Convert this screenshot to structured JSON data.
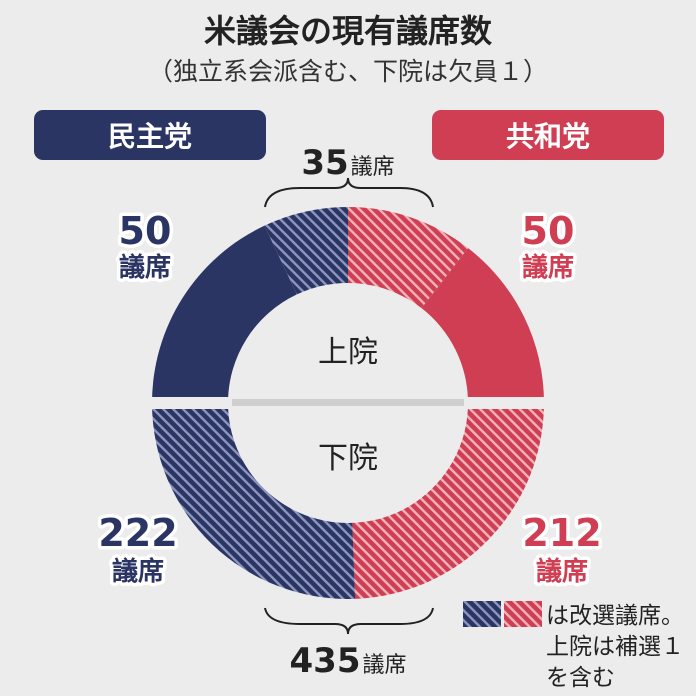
{
  "header": {
    "title": "米議会の現有議席数",
    "subtitle": "（独立系会派含む、下院は欠員１）"
  },
  "legend": {
    "democrat": "民主党",
    "republican": "共和党",
    "note_line1": "は改選議席。",
    "note_line2": "上院は補選１",
    "note_line3": "を含む"
  },
  "colors": {
    "democrat": "#2b3564",
    "republican": "#cf3e52",
    "background": "#ececec"
  },
  "chart_data": [
    {
      "type": "pie",
      "chamber": "上院",
      "series": [
        {
          "name": "民主党",
          "value": 50,
          "label_num": "50",
          "label_unit": "議席"
        },
        {
          "name": "共和党",
          "value": 50,
          "label_num": "50",
          "label_unit": "議席"
        }
      ],
      "up_for_election": {
        "total": 35,
        "label_num": "35",
        "label_unit": "議席",
        "democrat": 14,
        "republican": 21
      }
    },
    {
      "type": "pie",
      "chamber": "下院",
      "series": [
        {
          "name": "民主党",
          "value": 222,
          "label_num": "222",
          "label_unit": "議席"
        },
        {
          "name": "共和党",
          "value": 212,
          "label_num": "212",
          "label_unit": "議席"
        }
      ],
      "up_for_election": {
        "total": 435,
        "label_num": "435",
        "label_unit": "議席",
        "democrat": 222,
        "republican": 212
      }
    }
  ]
}
